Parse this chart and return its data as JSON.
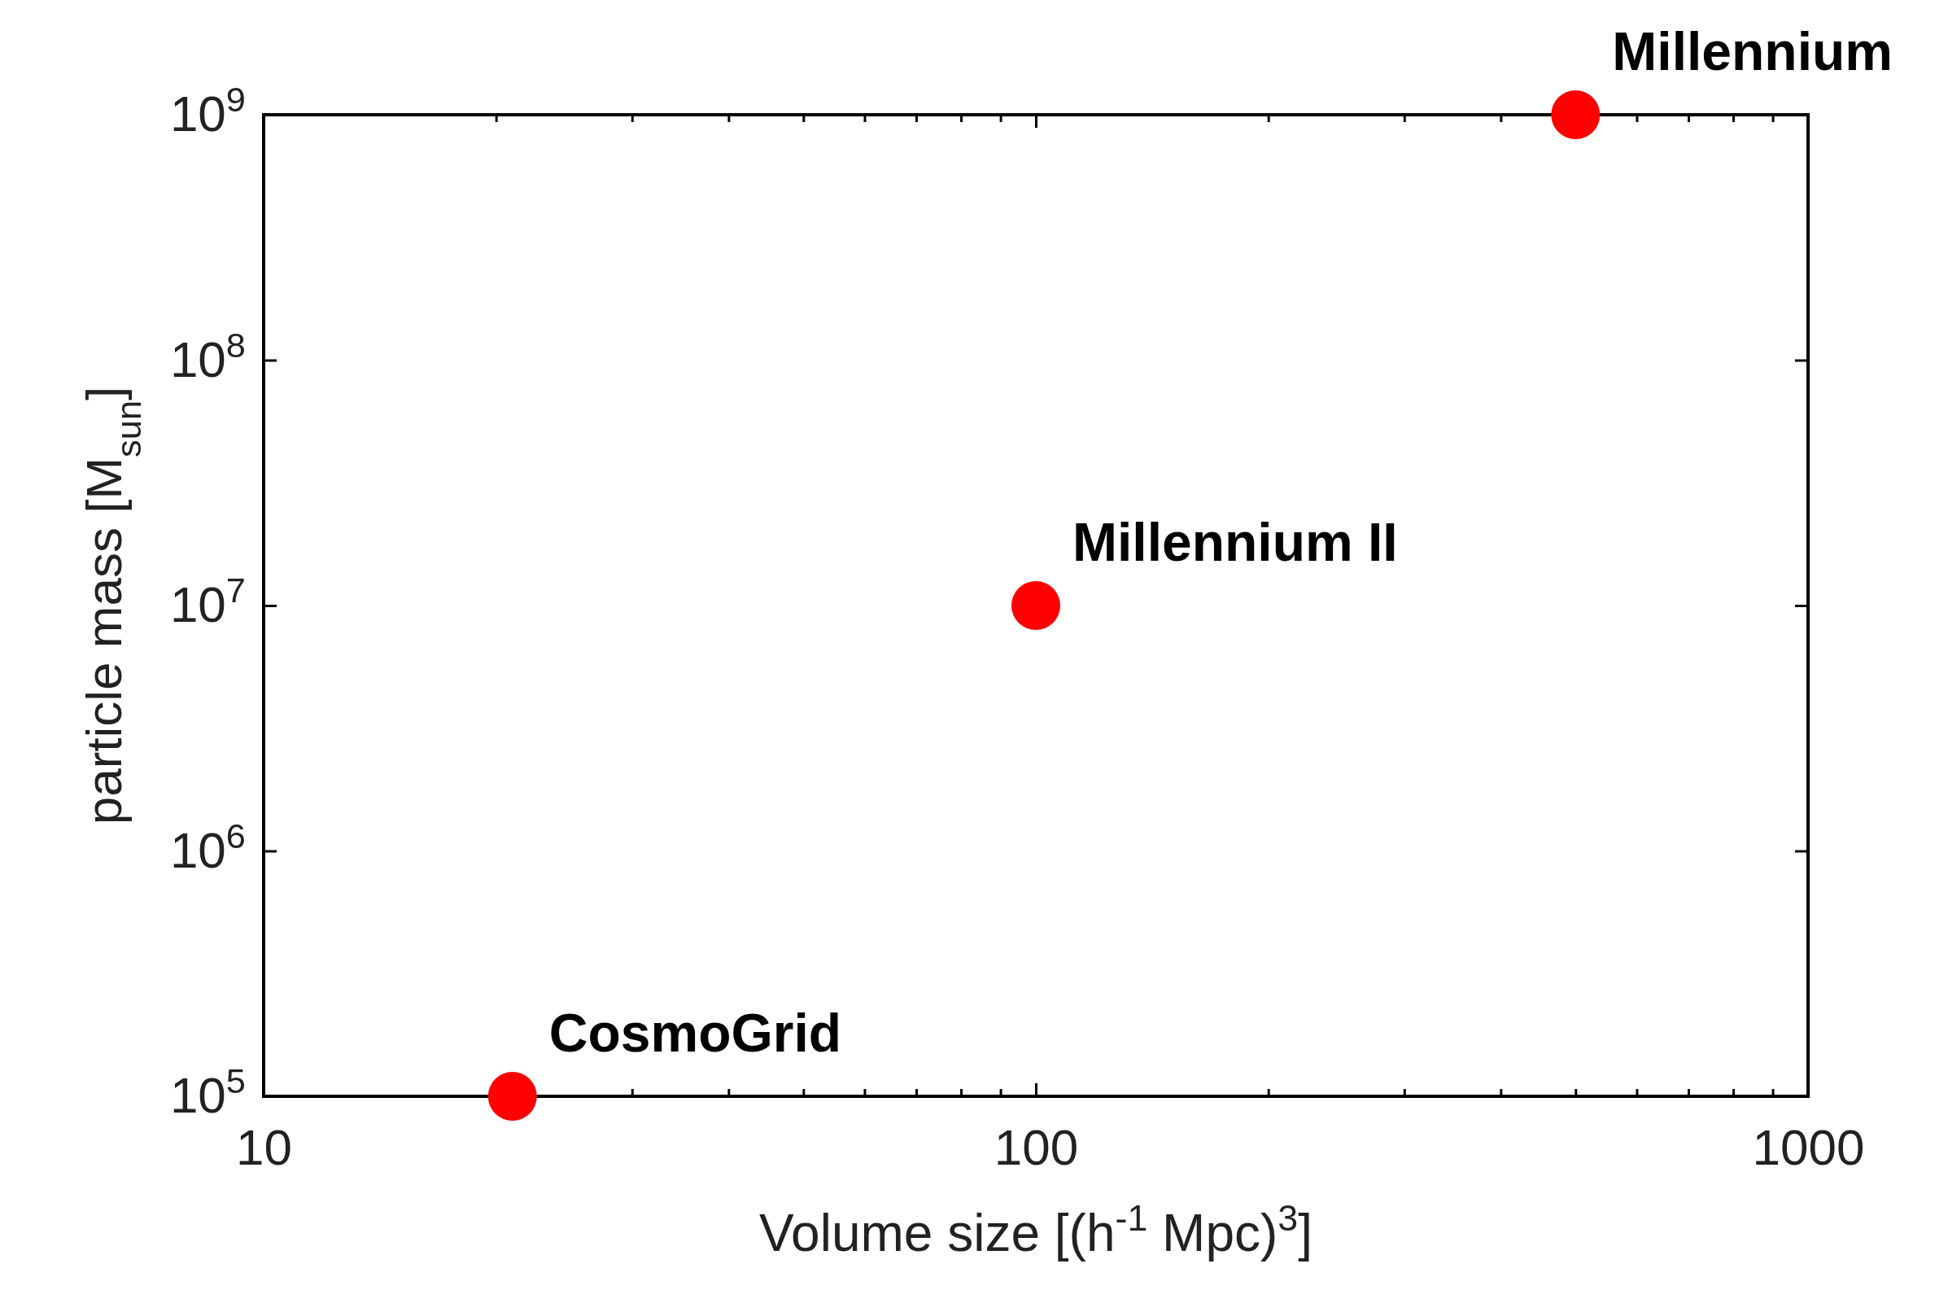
{
  "chart_data": {
    "type": "scatter",
    "xlabel": "Volume size [(h$^{-1}$ Mpc)$^{3}$]",
    "ylabel": "particle mass [M$_{sun}$]",
    "x": [
      21,
      100,
      500
    ],
    "series": [
      {
        "color": "#ff0000",
        "values": [
          100000,
          10000000,
          1000000000
        ]
      }
    ],
    "log": "xy",
    "marker": "circle",
    "grid": false,
    "xlim": [
      10,
      1000
    ],
    "ylim": [
      100000,
      1000000000
    ],
    "xticks": [
      10,
      {
        "value": 20,
        "label": null
      },
      {
        "value": 30,
        "label": null
      },
      {
        "value": 40,
        "label": null
      },
      {
        "value": 50,
        "label": null
      },
      {
        "value": 60,
        "label": null
      },
      {
        "value": 70,
        "label": null
      },
      {
        "value": 80,
        "label": null
      },
      {
        "value": 90,
        "label": null
      },
      100,
      {
        "value": 200,
        "label": null
      },
      {
        "value": 300,
        "label": null
      },
      {
        "value": 400,
        "label": null
      },
      {
        "value": 500,
        "label": null
      },
      {
        "value": 600,
        "label": null
      },
      {
        "value": 700,
        "label": null
      },
      {
        "value": 800,
        "label": null
      },
      {
        "value": 900,
        "label": null
      },
      1000
    ],
    "yticks": [
      {
        "value": 100000,
        "label": "10$^{5}$"
      },
      {
        "value": 1000000,
        "label": "10$^{6}$"
      },
      {
        "value": 10000000,
        "label": "10$^{7}$"
      },
      {
        "value": 100000000,
        "label": "10$^{8}$"
      },
      {
        "value": 1000000000,
        "label": "10$^{9}$"
      }
    ],
    "annotations": [
      {
        "text": "CosmoGrid",
        "x": 21,
        "y": 100000
      },
      {
        "text": "Millennium II",
        "x": 100,
        "y": 10000000
      },
      {
        "text": "Millennium",
        "x": 500,
        "y": 1000000000
      }
    ]
  }
}
